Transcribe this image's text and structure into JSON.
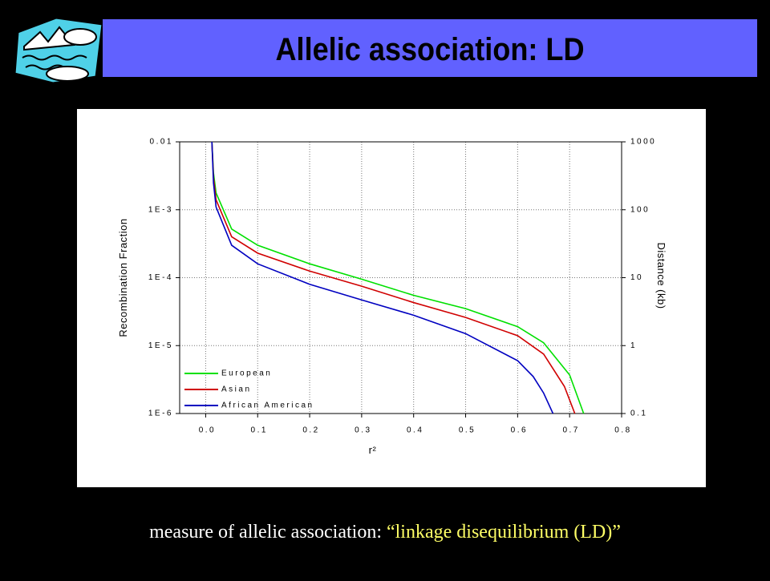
{
  "slide": {
    "title": "Allelic association: LD",
    "caption_prefix": "measure of allelic association: ",
    "caption_highlight": "“linkage disequilibrium (LD)”"
  },
  "chart_data": {
    "type": "line",
    "y_label": "Recombination Fraction",
    "y2_label": "Distance (kb)",
    "x_label": "r²",
    "log_y": true,
    "grid": true,
    "legend": "lower-left",
    "xlim": [
      -0.05,
      0.8
    ],
    "xticks": [
      {
        "value": 0,
        "label": "0.0"
      },
      0.1,
      0.2,
      0.3,
      0.4,
      0.5,
      0.6,
      0.7,
      0.8
    ],
    "ylim": [
      1e-06,
      0.01
    ],
    "yticks": [
      {
        "value": 1e-06,
        "label": "1E-6"
      },
      {
        "value": 1e-05,
        "label": "1E-5"
      },
      {
        "value": 0.0001,
        "label": "1E-4"
      },
      {
        "value": 0.001,
        "label": "1E-3"
      },
      0.01
    ],
    "y2lim": [
      0.1,
      1000
    ],
    "y2ticks": [
      0.1,
      1,
      10,
      100,
      1000
    ],
    "series": [
      {
        "name": "European",
        "color": "#00e000",
        "x": [
          0.012,
          0.015,
          0.02,
          0.05,
          0.1,
          0.2,
          0.3,
          0.4,
          0.5,
          0.6,
          0.65,
          0.7,
          0.727
        ],
        "values": [
          0.01,
          0.0035,
          0.00177,
          0.00052,
          0.0003,
          0.00016,
          9.5e-05,
          5.5e-05,
          3.5e-05,
          1.9e-05,
          1.1e-05,
          3.7e-06,
          1e-06
        ]
      },
      {
        "name": "Asian",
        "color": "#d00000",
        "x": [
          0.012,
          0.015,
          0.02,
          0.05,
          0.1,
          0.2,
          0.3,
          0.4,
          0.5,
          0.6,
          0.65,
          0.69,
          0.71
        ],
        "values": [
          0.01,
          0.003,
          0.0014,
          0.0004,
          0.00023,
          0.000125,
          7.5e-05,
          4.3e-05,
          2.6e-05,
          1.4e-05,
          7.5e-06,
          2.5e-06,
          1e-06
        ]
      },
      {
        "name": "African American",
        "color": "#0000c0",
        "x": [
          0.012,
          0.015,
          0.02,
          0.05,
          0.1,
          0.2,
          0.3,
          0.4,
          0.5,
          0.6,
          0.63,
          0.65,
          0.668
        ],
        "values": [
          0.01,
          0.0025,
          0.0011,
          0.0003,
          0.00016,
          8e-05,
          4.7e-05,
          2.8e-05,
          1.5e-05,
          6e-06,
          3.5e-06,
          2e-06,
          1e-06
        ]
      }
    ]
  }
}
